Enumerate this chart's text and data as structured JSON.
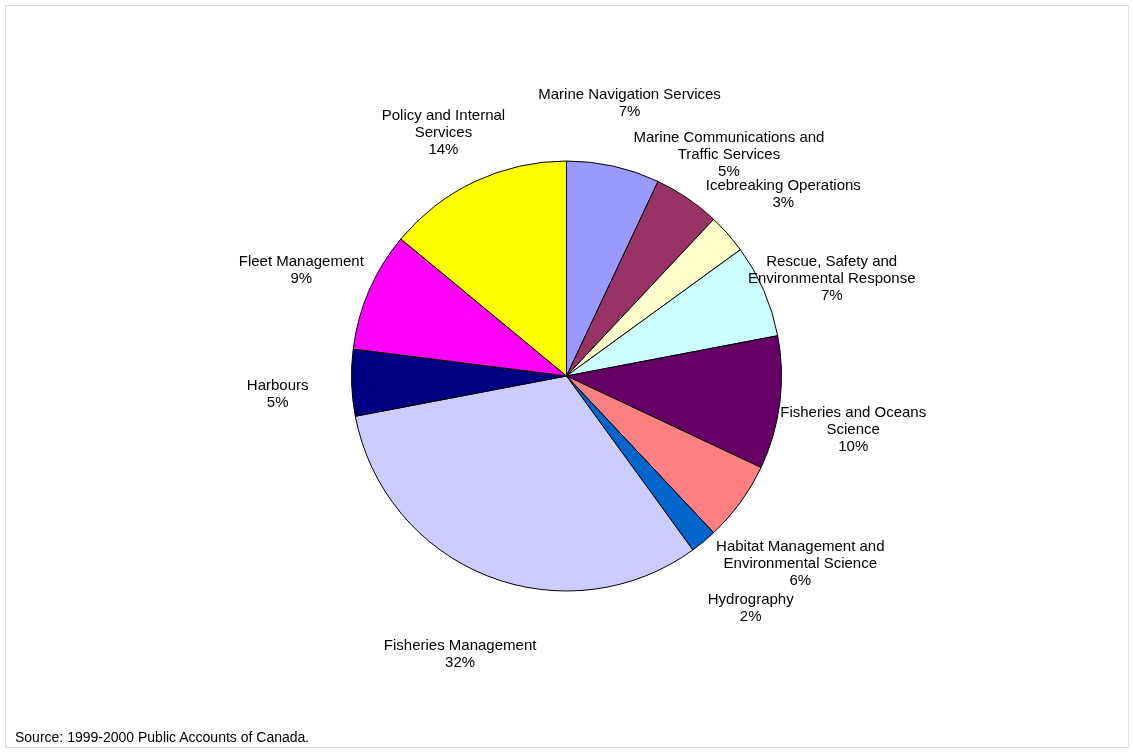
{
  "chart_data": {
    "type": "pie",
    "categories": [
      "Marine Navigation Services",
      "Marine Communications and Traffic Services",
      "Icebreaking Operations",
      "Rescue, Safety and Environmental Response",
      "Fisheries and Oceans Science",
      "Habitat Management and Environmental Science",
      "Hydrography",
      "Fisheries Management",
      "Harbours",
      "Fleet Management",
      "Policy and Internal Services"
    ],
    "values": [
      7,
      5,
      3,
      7,
      10,
      6,
      2,
      32,
      5,
      9,
      14
    ],
    "value_labels": [
      "7%",
      "5%",
      "3%",
      "7%",
      "10%",
      "6%",
      "2%",
      "32%",
      "5%",
      "9%",
      "14%"
    ],
    "colors": [
      "#9999ff",
      "#993366",
      "#ffffcc",
      "#ccffff",
      "#660066",
      "#ff8080",
      "#0066cc",
      "#ccccff",
      "#000080",
      "#ff00ff",
      "#ffff00"
    ],
    "annotations": [
      "Source: 1999-2000 Public Accounts of Canada."
    ]
  }
}
